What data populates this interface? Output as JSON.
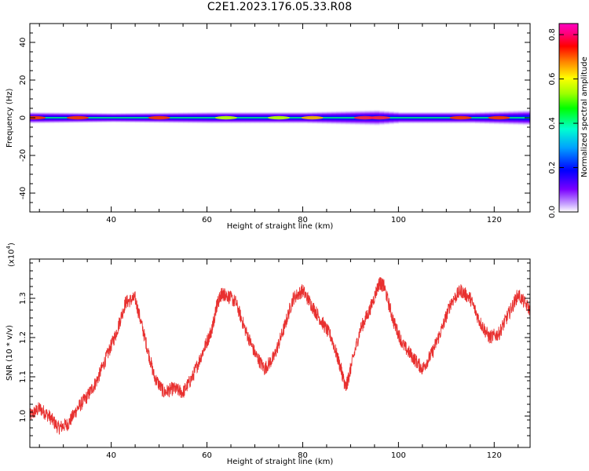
{
  "title": "C2E1.2023.176.05.33.R08",
  "chart_data": [
    {
      "type": "heatmap",
      "title": "",
      "xlabel": "Height of straight line (km)",
      "ylabel": "Frequency (Hz)",
      "xlim": [
        23,
        127.5
      ],
      "ylim": [
        -50,
        50
      ],
      "x_ticks": [
        40,
        60,
        80,
        100,
        120
      ],
      "y_ticks": [
        -40,
        -20,
        0,
        20,
        40
      ],
      "band": {
        "center_hz": 0,
        "half_width_hz": [
          [
            23,
            3
          ],
          [
            40,
            2.5
          ],
          [
            60,
            3
          ],
          [
            80,
            3
          ],
          [
            88,
            3.5
          ],
          [
            95,
            4
          ],
          [
            100,
            3
          ],
          [
            115,
            3
          ],
          [
            127.5,
            4
          ]
        ],
        "hot_spots": [
          {
            "x": 24,
            "level": 0.75
          },
          {
            "x": 33,
            "level": 0.75
          },
          {
            "x": 50,
            "level": 0.7
          },
          {
            "x": 64,
            "level": 0.6
          },
          {
            "x": 75,
            "level": 0.55
          },
          {
            "x": 82,
            "level": 0.65
          },
          {
            "x": 93,
            "level": 0.82
          },
          {
            "x": 96,
            "level": 0.82
          },
          {
            "x": 113,
            "level": 0.7
          },
          {
            "x": 121,
            "level": 0.72
          }
        ]
      },
      "colorbar": {
        "label": "Normalized spectral amplitude",
        "range": [
          0,
          0.85
        ],
        "ticks": [
          "0.0",
          "0.2",
          "0.4",
          "0.6",
          "0.8"
        ],
        "colors": [
          "#ffffff",
          "#c9a6ff",
          "#7a00ff",
          "#0000ff",
          "#00a0ff",
          "#00ffd0",
          "#00ff00",
          "#a0ff00",
          "#ffff00",
          "#ff8000",
          "#ff0000",
          "#ff0080",
          "#ff00c0"
        ]
      }
    },
    {
      "type": "line",
      "title": "",
      "xlabel": "Height of straight line (km)",
      "ylabel": "SNR (10 * v/v)",
      "y_multiplier": "(x10",
      "y_multiplier_exp": "4",
      "y_multiplier_close": ")",
      "xlim": [
        23,
        127.5
      ],
      "ylim": [
        0.92,
        1.4
      ],
      "x_ticks": [
        40,
        60,
        80,
        100,
        120
      ],
      "y_ticks": [
        "1.0",
        "1.1",
        "1.2",
        "1.3"
      ],
      "y_tick_values": [
        1.0,
        1.1,
        1.2,
        1.3
      ],
      "series": [
        {
          "color": "#e8302f",
          "x": [
            23,
            25,
            27,
            29,
            31,
            33,
            35,
            37,
            39,
            41,
            43,
            45,
            47,
            49,
            51,
            53,
            55,
            57,
            59,
            61,
            62,
            63,
            64,
            66,
            68,
            70,
            72,
            74,
            76,
            78,
            80,
            82,
            84,
            86,
            88,
            89,
            90,
            92,
            94,
            96,
            97,
            99,
            101,
            103,
            105,
            107,
            109,
            111,
            113,
            115,
            117,
            119,
            121,
            123,
            125,
            127.5
          ],
          "y": [
            1.0,
            1.02,
            1.0,
            0.97,
            0.98,
            1.02,
            1.05,
            1.09,
            1.15,
            1.21,
            1.29,
            1.3,
            1.2,
            1.1,
            1.06,
            1.07,
            1.06,
            1.1,
            1.16,
            1.22,
            1.28,
            1.31,
            1.31,
            1.29,
            1.22,
            1.16,
            1.12,
            1.15,
            1.22,
            1.3,
            1.32,
            1.28,
            1.24,
            1.2,
            1.12,
            1.07,
            1.12,
            1.22,
            1.27,
            1.34,
            1.33,
            1.24,
            1.18,
            1.15,
            1.12,
            1.16,
            1.22,
            1.29,
            1.32,
            1.3,
            1.24,
            1.2,
            1.21,
            1.26,
            1.31,
            1.27
          ],
          "noise": 0.018
        }
      ]
    }
  ]
}
